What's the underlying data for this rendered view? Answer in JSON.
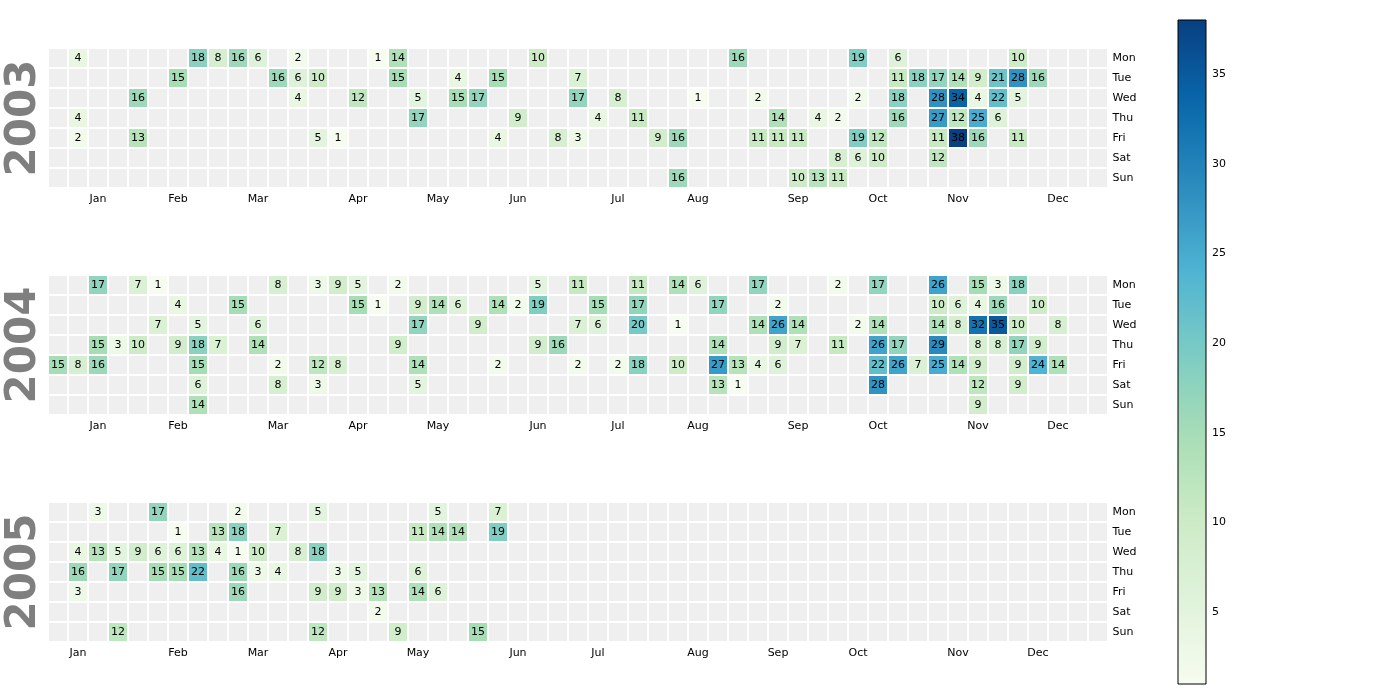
{
  "chart_data": [
    {
      "type": "heatmap",
      "title": "2003",
      "data_labels": true,
      "clim": [
        1,
        38
      ],
      "cticks": [
        5,
        10,
        15,
        20,
        25,
        30,
        35
      ],
      "categories": [
        null,
        null,
        "Jan",
        null,
        null,
        null,
        "Feb",
        null,
        null,
        null,
        "Mar",
        null,
        null,
        null,
        null,
        "Apr",
        null,
        null,
        null,
        "May",
        null,
        null,
        null,
        "Jun",
        null,
        null,
        null,
        null,
        "Jul",
        null,
        null,
        null,
        "Aug",
        null,
        null,
        null,
        null,
        "Sep",
        null,
        null,
        null,
        "Oct",
        null,
        null,
        null,
        "Nov",
        null,
        null,
        null,
        null,
        "Dec",
        null,
        null
      ],
      "y_categories": [
        "Mon",
        "Tue",
        "Wed",
        "Thu",
        "Fri",
        "Sat",
        "Sun"
      ],
      "cells": [
        [
          null,
          4,
          null,
          null,
          null,
          null,
          null,
          18,
          8,
          16,
          6,
          null,
          2,
          null,
          null,
          null,
          1,
          14,
          null,
          null,
          null,
          null,
          null,
          null,
          10,
          null,
          null,
          null,
          null,
          null,
          null,
          null,
          null,
          null,
          16,
          null,
          null,
          null,
          null,
          null,
          19,
          null,
          6,
          null,
          null,
          null,
          null,
          null,
          10,
          null,
          null,
          null,
          null
        ],
        [
          null,
          null,
          null,
          null,
          null,
          null,
          15,
          null,
          null,
          null,
          null,
          16,
          6,
          10,
          null,
          null,
          null,
          15,
          null,
          null,
          4,
          null,
          15,
          null,
          null,
          null,
          7,
          null,
          null,
          null,
          null,
          null,
          null,
          null,
          null,
          null,
          null,
          null,
          null,
          null,
          null,
          null,
          11,
          18,
          17,
          14,
          9,
          21,
          28,
          16,
          null,
          null,
          null
        ],
        [
          null,
          null,
          null,
          null,
          16,
          null,
          null,
          null,
          null,
          null,
          null,
          null,
          4,
          null,
          null,
          12,
          null,
          null,
          5,
          null,
          15,
          17,
          null,
          null,
          null,
          null,
          17,
          null,
          8,
          null,
          null,
          null,
          1,
          null,
          null,
          2,
          null,
          null,
          null,
          null,
          2,
          null,
          18,
          null,
          28,
          34,
          4,
          22,
          5,
          null,
          null,
          null,
          null
        ],
        [
          null,
          4,
          null,
          null,
          null,
          null,
          null,
          null,
          null,
          null,
          null,
          null,
          null,
          null,
          null,
          null,
          null,
          null,
          17,
          null,
          null,
          null,
          null,
          9,
          null,
          null,
          null,
          4,
          null,
          11,
          null,
          null,
          null,
          null,
          null,
          null,
          14,
          null,
          4,
          2,
          null,
          null,
          16,
          null,
          27,
          12,
          25,
          6,
          null,
          null,
          null,
          null,
          null
        ],
        [
          null,
          2,
          null,
          null,
          13,
          null,
          null,
          null,
          null,
          null,
          null,
          null,
          null,
          5,
          1,
          null,
          null,
          null,
          null,
          null,
          null,
          null,
          4,
          null,
          null,
          8,
          3,
          null,
          null,
          null,
          9,
          16,
          null,
          null,
          null,
          11,
          11,
          11,
          null,
          null,
          19,
          12,
          null,
          null,
          11,
          38,
          16,
          null,
          11,
          null,
          null,
          null,
          null
        ],
        [
          null,
          null,
          null,
          null,
          null,
          null,
          null,
          null,
          null,
          null,
          null,
          null,
          null,
          null,
          null,
          null,
          null,
          null,
          null,
          null,
          null,
          null,
          null,
          null,
          null,
          null,
          null,
          null,
          null,
          null,
          null,
          null,
          null,
          null,
          null,
          null,
          null,
          null,
          null,
          8,
          6,
          10,
          null,
          null,
          12,
          null,
          null,
          null,
          null,
          null,
          null,
          null,
          null
        ],
        [
          null,
          null,
          null,
          null,
          null,
          null,
          null,
          null,
          null,
          null,
          null,
          null,
          null,
          null,
          null,
          null,
          null,
          null,
          null,
          null,
          null,
          null,
          null,
          null,
          null,
          null,
          null,
          null,
          null,
          null,
          null,
          16,
          null,
          null,
          null,
          null,
          null,
          10,
          13,
          11,
          null,
          null,
          null,
          null,
          null,
          null,
          null,
          null,
          null,
          null,
          null,
          null,
          null
        ]
      ]
    },
    {
      "type": "heatmap",
      "title": "2004",
      "data_labels": true,
      "categories": [
        null,
        null,
        "Jan",
        null,
        null,
        null,
        "Feb",
        null,
        null,
        null,
        null,
        "Mar",
        null,
        null,
        null,
        "Apr",
        null,
        null,
        null,
        "May",
        null,
        null,
        null,
        null,
        "Jun",
        null,
        null,
        null,
        "Jul",
        null,
        null,
        null,
        "Aug",
        null,
        null,
        null,
        null,
        "Sep",
        null,
        null,
        null,
        "Oct",
        null,
        null,
        null,
        null,
        "Nov",
        null,
        null,
        null,
        "Dec",
        null,
        null
      ],
      "y_categories": [
        "Mon",
        "Tue",
        "Wed",
        "Thu",
        "Fri",
        "Sat",
        "Sun"
      ],
      "cells": [
        [
          null,
          null,
          17,
          null,
          7,
          1,
          null,
          null,
          null,
          null,
          null,
          8,
          null,
          3,
          9,
          5,
          null,
          2,
          null,
          null,
          null,
          null,
          null,
          null,
          5,
          null,
          11,
          null,
          null,
          11,
          null,
          14,
          6,
          null,
          null,
          17,
          null,
          null,
          null,
          2,
          null,
          17,
          null,
          null,
          26,
          null,
          15,
          3,
          18,
          null,
          null,
          null,
          null
        ],
        [
          null,
          null,
          null,
          null,
          null,
          null,
          4,
          null,
          null,
          15,
          null,
          null,
          null,
          null,
          null,
          15,
          1,
          null,
          9,
          14,
          6,
          null,
          14,
          2,
          19,
          null,
          null,
          15,
          null,
          17,
          null,
          null,
          null,
          17,
          null,
          null,
          2,
          null,
          null,
          null,
          null,
          null,
          null,
          null,
          10,
          6,
          4,
          16,
          null,
          10,
          null,
          null,
          null
        ],
        [
          null,
          null,
          null,
          null,
          null,
          7,
          null,
          5,
          null,
          null,
          6,
          null,
          null,
          null,
          null,
          null,
          null,
          null,
          17,
          null,
          null,
          9,
          null,
          null,
          null,
          null,
          7,
          6,
          null,
          20,
          null,
          1,
          null,
          null,
          null,
          14,
          26,
          14,
          null,
          null,
          2,
          14,
          null,
          null,
          14,
          8,
          32,
          35,
          10,
          null,
          8,
          null,
          null
        ],
        [
          null,
          null,
          15,
          3,
          10,
          null,
          9,
          18,
          7,
          null,
          14,
          null,
          null,
          null,
          null,
          null,
          null,
          9,
          null,
          null,
          null,
          null,
          null,
          null,
          9,
          16,
          null,
          null,
          null,
          null,
          null,
          null,
          null,
          14,
          null,
          null,
          9,
          7,
          null,
          11,
          null,
          26,
          17,
          null,
          29,
          null,
          8,
          8,
          17,
          9,
          null,
          null,
          null
        ],
        [
          15,
          8,
          16,
          null,
          null,
          null,
          null,
          15,
          null,
          null,
          null,
          2,
          null,
          12,
          8,
          null,
          null,
          null,
          14,
          null,
          null,
          null,
          2,
          null,
          null,
          null,
          2,
          null,
          2,
          18,
          null,
          10,
          null,
          27,
          13,
          4,
          6,
          null,
          null,
          null,
          null,
          22,
          26,
          7,
          25,
          14,
          9,
          null,
          9,
          24,
          14,
          null,
          null
        ],
        [
          null,
          null,
          null,
          null,
          null,
          null,
          null,
          6,
          null,
          null,
          null,
          8,
          null,
          3,
          null,
          null,
          null,
          null,
          5,
          null,
          null,
          null,
          null,
          null,
          null,
          null,
          null,
          null,
          null,
          null,
          null,
          null,
          null,
          13,
          1,
          null,
          null,
          null,
          null,
          null,
          null,
          28,
          null,
          null,
          null,
          null,
          12,
          null,
          9,
          null,
          null,
          null,
          null
        ],
        [
          null,
          null,
          null,
          null,
          null,
          null,
          null,
          14,
          null,
          null,
          null,
          null,
          null,
          null,
          null,
          null,
          null,
          null,
          null,
          null,
          null,
          null,
          null,
          null,
          null,
          null,
          null,
          null,
          null,
          null,
          null,
          null,
          null,
          null,
          null,
          null,
          null,
          null,
          null,
          null,
          null,
          null,
          null,
          null,
          null,
          null,
          9,
          null,
          null,
          null,
          null,
          null,
          null
        ]
      ]
    },
    {
      "type": "heatmap",
      "title": "2005",
      "data_labels": true,
      "categories": [
        null,
        "Jan",
        null,
        null,
        null,
        null,
        "Feb",
        null,
        null,
        null,
        "Mar",
        null,
        null,
        null,
        "Apr",
        null,
        null,
        null,
        "May",
        null,
        null,
        null,
        null,
        "Jun",
        null,
        null,
        null,
        "Jul",
        null,
        null,
        null,
        null,
        "Aug",
        null,
        null,
        null,
        "Sep",
        null,
        null,
        null,
        "Oct",
        null,
        null,
        null,
        null,
        "Nov",
        null,
        null,
        null,
        "Dec",
        null,
        null,
        null
      ],
      "y_categories": [
        "Mon",
        "Tue",
        "Wed",
        "Thu",
        "Fri",
        "Sat",
        "Sun"
      ],
      "cells": [
        [
          null,
          null,
          3,
          null,
          null,
          17,
          null,
          null,
          null,
          2,
          null,
          null,
          null,
          5,
          null,
          null,
          null,
          null,
          null,
          5,
          null,
          null,
          7,
          null,
          null,
          null,
          null,
          null,
          null,
          null,
          null,
          null,
          null,
          null,
          null,
          null,
          null,
          null,
          null,
          null,
          null,
          null,
          null,
          null,
          null,
          null,
          null,
          null,
          null,
          null,
          null,
          null,
          null
        ],
        [
          null,
          null,
          null,
          null,
          null,
          null,
          1,
          null,
          13,
          18,
          null,
          7,
          null,
          null,
          null,
          null,
          null,
          null,
          11,
          14,
          14,
          null,
          19,
          null,
          null,
          null,
          null,
          null,
          null,
          null,
          null,
          null,
          null,
          null,
          null,
          null,
          null,
          null,
          null,
          null,
          null,
          null,
          null,
          null,
          null,
          null,
          null,
          null,
          null,
          null,
          null,
          null,
          null
        ],
        [
          null,
          4,
          13,
          5,
          9,
          6,
          6,
          13,
          4,
          1,
          10,
          null,
          8,
          18,
          null,
          null,
          null,
          null,
          null,
          null,
          null,
          null,
          null,
          null,
          null,
          null,
          null,
          null,
          null,
          null,
          null,
          null,
          null,
          null,
          null,
          null,
          null,
          null,
          null,
          null,
          null,
          null,
          null,
          null,
          null,
          null,
          null,
          null,
          null,
          null,
          null,
          null,
          null
        ],
        [
          null,
          16,
          null,
          17,
          null,
          15,
          15,
          22,
          null,
          16,
          3,
          4,
          null,
          null,
          3,
          5,
          null,
          null,
          6,
          null,
          null,
          null,
          null,
          null,
          null,
          null,
          null,
          null,
          null,
          null,
          null,
          null,
          null,
          null,
          null,
          null,
          null,
          null,
          null,
          null,
          null,
          null,
          null,
          null,
          null,
          null,
          null,
          null,
          null,
          null,
          null,
          null,
          null
        ],
        [
          null,
          3,
          null,
          null,
          null,
          null,
          null,
          null,
          null,
          16,
          null,
          null,
          null,
          9,
          9,
          3,
          13,
          null,
          14,
          6,
          null,
          null,
          null,
          null,
          null,
          null,
          null,
          null,
          null,
          null,
          null,
          null,
          null,
          null,
          null,
          null,
          null,
          null,
          null,
          null,
          null,
          null,
          null,
          null,
          null,
          null,
          null,
          null,
          null,
          null,
          null,
          null,
          null
        ],
        [
          null,
          null,
          null,
          null,
          null,
          null,
          null,
          null,
          null,
          null,
          null,
          null,
          null,
          null,
          null,
          null,
          2,
          null,
          null,
          null,
          null,
          null,
          null,
          null,
          null,
          null,
          null,
          null,
          null,
          null,
          null,
          null,
          null,
          null,
          null,
          null,
          null,
          null,
          null,
          null,
          null,
          null,
          null,
          null,
          null,
          null,
          null,
          null,
          null,
          null,
          null,
          null,
          null
        ],
        [
          null,
          null,
          null,
          12,
          null,
          null,
          null,
          null,
          null,
          null,
          null,
          null,
          null,
          12,
          null,
          null,
          null,
          9,
          null,
          null,
          null,
          15,
          null,
          null,
          null,
          null,
          null,
          null,
          null,
          null,
          null,
          null,
          null,
          null,
          null,
          null,
          null,
          null,
          null,
          null,
          null,
          null,
          null,
          null,
          null,
          null,
          null,
          null,
          null,
          null,
          null,
          null,
          null
        ]
      ]
    }
  ]
}
